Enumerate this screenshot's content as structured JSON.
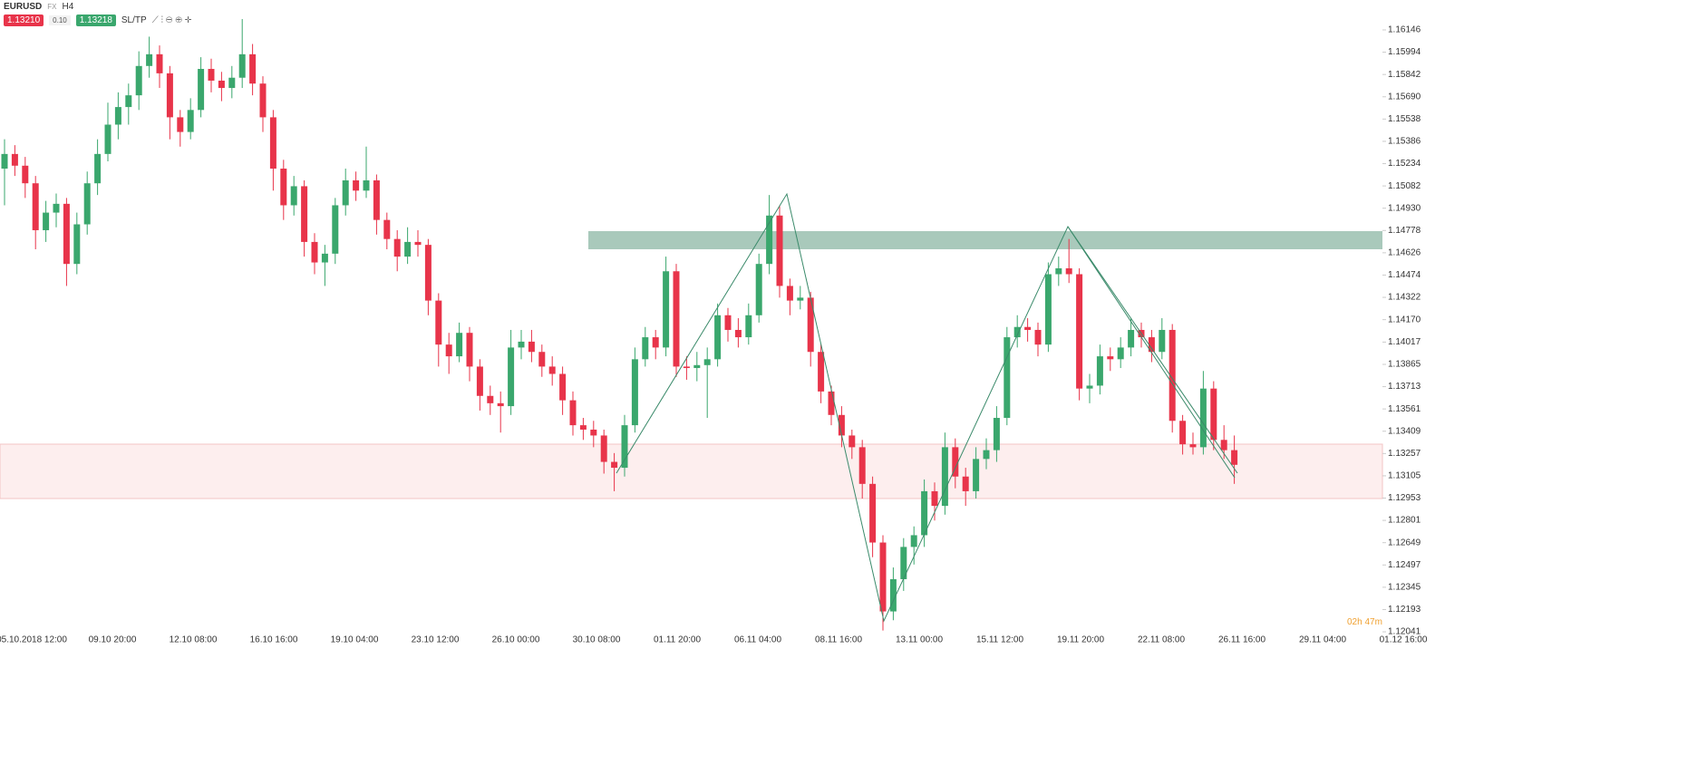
{
  "header": {
    "symbol": "EURUSD",
    "market": "FX",
    "timeframe": "H4",
    "sell": "1.13210",
    "lot": "0.10",
    "buy": "1.13218",
    "sltp": "SL/TP"
  },
  "countdown": "02h 47m",
  "chart_data": {
    "type": "candlestick",
    "up_color": "#3aa76d",
    "down_color": "#e8344a",
    "ylim": [
      1.1193,
      1.1635
    ],
    "yticks": [
      1.16146,
      1.15994,
      1.15842,
      {
        "value": 1.1569,
        "label": "1.15690"
      },
      1.15538,
      1.15386,
      1.15234,
      1.15082,
      {
        "value": 1.1493,
        "label": "1.14930"
      },
      1.14778,
      1.14626,
      1.14474,
      1.14322,
      {
        "value": 1.1417,
        "label": "1.14170"
      },
      1.14017,
      1.13865,
      1.13713,
      1.13561,
      1.13409,
      1.13257,
      1.13105,
      1.12953,
      1.12801,
      1.12649,
      1.12497,
      1.12345,
      1.12193,
      1.12041
    ],
    "x_labels": [
      "05.10.2018 12:00",
      "09.10 20:00",
      "12.10 08:00",
      "16.10 16:00",
      "19.10 04:00",
      "23.10 12:00",
      "26.10 00:00",
      "30.10 08:00",
      "01.11 20:00",
      "06.11 04:00",
      "08.11 16:00",
      "13.11 00:00",
      "15.11 12:00",
      "19.11 20:00",
      "22.11 08:00",
      "26.11 16:00",
      "29.11 04:00",
      "01.12 16:00"
    ],
    "candles": [
      [
        1.152,
        1.154,
        1.1495,
        1.153
      ],
      [
        1.153,
        1.1536,
        1.1515,
        1.1522
      ],
      [
        1.1522,
        1.1528,
        1.15,
        1.151
      ],
      [
        1.151,
        1.1515,
        1.1465,
        1.1478
      ],
      [
        1.1478,
        1.1498,
        1.147,
        1.149
      ],
      [
        1.149,
        1.1503,
        1.148,
        1.1496
      ],
      [
        1.1496,
        1.15,
        1.144,
        1.1455
      ],
      [
        1.1455,
        1.149,
        1.1448,
        1.1482
      ],
      [
        1.1482,
        1.1518,
        1.1475,
        1.151
      ],
      [
        1.151,
        1.154,
        1.1502,
        1.153
      ],
      [
        1.153,
        1.1565,
        1.1525,
        1.155
      ],
      [
        1.155,
        1.1572,
        1.154,
        1.1562
      ],
      [
        1.1562,
        1.1578,
        1.155,
        1.157
      ],
      [
        1.157,
        1.16,
        1.156,
        1.159
      ],
      [
        1.159,
        1.161,
        1.1582,
        1.1598
      ],
      [
        1.1598,
        1.1604,
        1.1575,
        1.1585
      ],
      [
        1.1585,
        1.159,
        1.154,
        1.1555
      ],
      [
        1.1555,
        1.156,
        1.1535,
        1.1545
      ],
      [
        1.1545,
        1.1568,
        1.154,
        1.156
      ],
      [
        1.156,
        1.1596,
        1.1555,
        1.1588
      ],
      [
        1.1588,
        1.1595,
        1.1572,
        1.158
      ],
      [
        1.158,
        1.1586,
        1.1566,
        1.1575
      ],
      [
        1.1575,
        1.159,
        1.1568,
        1.1582
      ],
      [
        1.1582,
        1.1622,
        1.1575,
        1.1598
      ],
      [
        1.1598,
        1.1605,
        1.157,
        1.1578
      ],
      [
        1.1578,
        1.1583,
        1.1545,
        1.1555
      ],
      [
        1.1555,
        1.156,
        1.1505,
        1.152
      ],
      [
        1.152,
        1.1526,
        1.1485,
        1.1495
      ],
      [
        1.1495,
        1.1515,
        1.1488,
        1.1508
      ],
      [
        1.1508,
        1.1512,
        1.146,
        1.147
      ],
      [
        1.147,
        1.1476,
        1.1448,
        1.1456
      ],
      [
        1.1456,
        1.1468,
        1.144,
        1.1462
      ],
      [
        1.1462,
        1.15,
        1.1455,
        1.1495
      ],
      [
        1.1495,
        1.152,
        1.1488,
        1.1512
      ],
      [
        1.1512,
        1.1518,
        1.1498,
        1.1505
      ],
      [
        1.1505,
        1.1535,
        1.15,
        1.1512
      ],
      [
        1.1512,
        1.1516,
        1.1475,
        1.1485
      ],
      [
        1.1485,
        1.149,
        1.1465,
        1.1472
      ],
      [
        1.1472,
        1.1478,
        1.145,
        1.146
      ],
      [
        1.146,
        1.148,
        1.1455,
        1.147
      ],
      [
        1.147,
        1.1478,
        1.146,
        1.1468
      ],
      [
        1.1468,
        1.1472,
        1.142,
        1.143
      ],
      [
        1.143,
        1.1435,
        1.1385,
        1.14
      ],
      [
        1.14,
        1.1408,
        1.138,
        1.1392
      ],
      [
        1.1392,
        1.1415,
        1.1388,
        1.1408
      ],
      [
        1.1408,
        1.1412,
        1.1375,
        1.1385
      ],
      [
        1.1385,
        1.139,
        1.1355,
        1.1365
      ],
      [
        1.1365,
        1.1372,
        1.1352,
        1.136
      ],
      [
        1.136,
        1.1368,
        1.134,
        1.1358
      ],
      [
        1.1358,
        1.141,
        1.1352,
        1.1398
      ],
      [
        1.1398,
        1.141,
        1.139,
        1.1402
      ],
      [
        1.1402,
        1.141,
        1.1388,
        1.1395
      ],
      [
        1.1395,
        1.14,
        1.1378,
        1.1385
      ],
      [
        1.1385,
        1.1392,
        1.1372,
        1.138
      ],
      [
        1.138,
        1.1385,
        1.1352,
        1.1362
      ],
      [
        1.1362,
        1.1368,
        1.1338,
        1.1345
      ],
      [
        1.1345,
        1.135,
        1.1335,
        1.1342
      ],
      [
        1.1342,
        1.1348,
        1.133,
        1.1338
      ],
      [
        1.1338,
        1.1342,
        1.1312,
        1.132
      ],
      [
        1.132,
        1.1326,
        1.13,
        1.1316
      ],
      [
        1.1316,
        1.1352,
        1.131,
        1.1345
      ],
      [
        1.1345,
        1.1398,
        1.134,
        1.139
      ],
      [
        1.139,
        1.1412,
        1.1385,
        1.1405
      ],
      [
        1.1405,
        1.141,
        1.139,
        1.1398
      ],
      [
        1.1398,
        1.146,
        1.1392,
        1.145
      ],
      [
        1.145,
        1.1455,
        1.1378,
        1.1385
      ],
      [
        1.1385,
        1.1392,
        1.1376,
        1.1384
      ],
      [
        1.1384,
        1.1395,
        1.1375,
        1.1386
      ],
      [
        1.1386,
        1.1398,
        1.135,
        1.139
      ],
      [
        1.139,
        1.1428,
        1.1385,
        1.142
      ],
      [
        1.142,
        1.1425,
        1.1402,
        1.141
      ],
      [
        1.141,
        1.1418,
        1.1398,
        1.1405
      ],
      [
        1.1405,
        1.1428,
        1.14,
        1.142
      ],
      [
        1.142,
        1.1462,
        1.1415,
        1.1455
      ],
      [
        1.1455,
        1.1502,
        1.1448,
        1.1488
      ],
      [
        1.1488,
        1.1495,
        1.1432,
        1.144
      ],
      [
        1.144,
        1.1445,
        1.142,
        1.143
      ],
      [
        1.143,
        1.144,
        1.1424,
        1.1432
      ],
      [
        1.1432,
        1.1436,
        1.1385,
        1.1395
      ],
      [
        1.1395,
        1.14,
        1.136,
        1.1368
      ],
      [
        1.1368,
        1.1372,
        1.1345,
        1.1352
      ],
      [
        1.1352,
        1.1358,
        1.133,
        1.1338
      ],
      [
        1.1338,
        1.1342,
        1.1322,
        1.133
      ],
      [
        1.133,
        1.1335,
        1.1295,
        1.1305
      ],
      [
        1.1305,
        1.131,
        1.1255,
        1.1265
      ],
      [
        1.1265,
        1.127,
        1.1205,
        1.1218
      ],
      [
        1.1218,
        1.1248,
        1.1212,
        1.124
      ],
      [
        1.124,
        1.1268,
        1.1232,
        1.1262
      ],
      [
        1.1262,
        1.1276,
        1.125,
        1.127
      ],
      [
        1.127,
        1.1308,
        1.1262,
        1.13
      ],
      [
        1.13,
        1.1306,
        1.128,
        1.129
      ],
      [
        1.129,
        1.134,
        1.1284,
        1.133
      ],
      [
        1.133,
        1.1336,
        1.1302,
        1.131
      ],
      [
        1.131,
        1.1316,
        1.129,
        1.13
      ],
      [
        1.13,
        1.133,
        1.1295,
        1.1322
      ],
      [
        1.1322,
        1.1336,
        1.1315,
        1.1328
      ],
      [
        1.1328,
        1.1358,
        1.132,
        1.135
      ],
      [
        1.135,
        1.1412,
        1.1345,
        1.1405
      ],
      [
        1.1405,
        1.142,
        1.1398,
        1.1412
      ],
      [
        1.1412,
        1.1418,
        1.1402,
        1.141
      ],
      [
        1.141,
        1.1415,
        1.1392,
        1.14
      ],
      [
        1.14,
        1.1456,
        1.1395,
        1.1448
      ],
      [
        1.1448,
        1.146,
        1.144,
        1.1452
      ],
      [
        1.1452,
        1.1472,
        1.1442,
        1.1448
      ],
      [
        1.1448,
        1.1452,
        1.1362,
        1.137
      ],
      [
        1.137,
        1.138,
        1.136,
        1.1372
      ],
      [
        1.1372,
        1.14,
        1.1366,
        1.1392
      ],
      [
        1.1392,
        1.1398,
        1.1382,
        1.139
      ],
      [
        1.139,
        1.1405,
        1.1384,
        1.1398
      ],
      [
        1.1398,
        1.1418,
        1.1392,
        1.141
      ],
      [
        1.141,
        1.1415,
        1.1398,
        1.1405
      ],
      [
        1.1405,
        1.141,
        1.1388,
        1.1395
      ],
      [
        1.1395,
        1.1418,
        1.139,
        1.141
      ],
      [
        1.141,
        1.1414,
        1.134,
        1.1348
      ],
      [
        1.1348,
        1.1352,
        1.1325,
        1.1332
      ],
      [
        1.1332,
        1.134,
        1.1325,
        1.133
      ],
      [
        1.133,
        1.1382,
        1.1325,
        1.137
      ],
      [
        1.137,
        1.1375,
        1.1328,
        1.1335
      ],
      [
        1.1335,
        1.1345,
        1.1322,
        1.1328
      ],
      [
        1.1328,
        1.1338,
        1.1305,
        1.1318
      ]
    ]
  }
}
